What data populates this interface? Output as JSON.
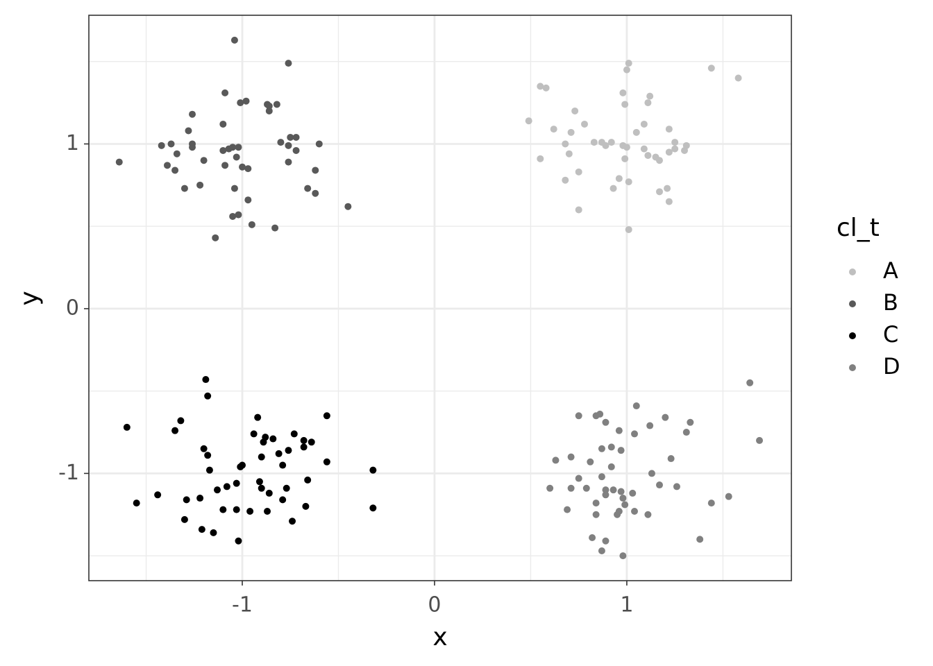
{
  "chart_data": {
    "type": "scatter",
    "x_label": "x",
    "y_label": "y",
    "legend_title": "cl_t",
    "legend_position": "right",
    "xlim": [
      -1.798,
      1.856
    ],
    "ylim": [
      -1.651,
      1.781
    ],
    "xticks": [
      -1,
      0,
      1
    ],
    "yticks": [
      -1,
      0,
      1
    ],
    "x_minor_grid": [
      -1.5,
      -0.5,
      0.5,
      1.5
    ],
    "y_minor_grid": [
      -1.5,
      -0.5,
      0.5,
      1.5
    ],
    "grid": true,
    "series": [
      {
        "name": "A",
        "color": "#bfbfbf",
        "x": [
          0.49,
          0.55,
          0.58,
          0.62,
          0.71,
          0.73,
          0.78,
          0.68,
          0.7,
          0.83,
          0.55,
          0.75,
          0.68,
          0.75,
          0.87,
          0.92,
          0.89,
          0.98,
          1.01,
          1.0,
          0.99,
          0.98,
          1.0,
          0.99,
          0.96,
          0.93,
          1.01,
          1.01,
          1.05,
          1.09,
          1.11,
          1.12,
          1.09,
          1.11,
          1.15,
          1.17,
          1.17,
          1.21,
          1.22,
          1.22,
          1.22,
          1.25,
          1.25,
          1.3,
          1.31,
          1.44,
          1.58
        ],
        "y": [
          1.14,
          1.35,
          1.34,
          1.09,
          1.07,
          1.2,
          1.12,
          1.0,
          0.94,
          1.01,
          0.91,
          0.83,
          0.78,
          0.6,
          1.01,
          1.01,
          0.99,
          1.31,
          1.49,
          1.45,
          1.24,
          0.99,
          0.98,
          0.91,
          0.79,
          0.73,
          0.77,
          0.48,
          1.07,
          1.12,
          1.25,
          1.29,
          0.97,
          0.93,
          0.92,
          0.9,
          0.71,
          0.73,
          0.65,
          1.09,
          0.95,
          1.01,
          0.97,
          0.96,
          0.99,
          1.46,
          1.4
        ]
      },
      {
        "name": "B",
        "color": "#595959",
        "x": [
          -1.64,
          -1.42,
          -1.37,
          -1.39,
          -1.35,
          -1.34,
          -1.3,
          -1.28,
          -1.26,
          -1.26,
          -1.26,
          -1.22,
          -1.2,
          -1.14,
          -1.09,
          -1.1,
          -1.1,
          -1.07,
          -1.09,
          -1.05,
          -1.04,
          -1.04,
          -1.03,
          -1.01,
          -0.98,
          -1.02,
          -1.0,
          -0.97,
          -0.97,
          -1.05,
          -1.02,
          -0.95,
          -0.87,
          -0.86,
          -0.86,
          -0.82,
          -0.83,
          -0.8,
          -0.76,
          -0.75,
          -0.76,
          -0.76,
          -0.72,
          -0.72,
          -0.66,
          -0.62,
          -0.62,
          -0.6,
          -0.45
        ],
        "y": [
          0.89,
          0.99,
          1.0,
          0.87,
          0.84,
          0.94,
          0.73,
          1.08,
          1.18,
          1.0,
          0.98,
          0.75,
          0.9,
          0.43,
          1.31,
          1.12,
          0.96,
          0.97,
          0.87,
          0.98,
          1.63,
          0.73,
          0.92,
          1.25,
          1.26,
          0.98,
          0.86,
          0.85,
          0.66,
          0.56,
          0.57,
          0.51,
          1.24,
          1.2,
          1.23,
          1.24,
          0.49,
          1.01,
          1.49,
          1.04,
          0.99,
          0.89,
          1.04,
          0.96,
          0.73,
          0.84,
          0.7,
          1.0,
          0.62
        ]
      },
      {
        "name": "C",
        "color": "#000000",
        "x": [
          -1.6,
          -1.55,
          -1.44,
          -1.35,
          -1.32,
          -1.3,
          -1.29,
          -1.22,
          -1.21,
          -1.2,
          -1.19,
          -1.18,
          -1.18,
          -1.17,
          -1.15,
          -1.13,
          -1.1,
          -1.08,
          -1.03,
          -1.03,
          -1.02,
          -1.01,
          -1.0,
          -0.96,
          -0.94,
          -0.92,
          -0.91,
          -0.9,
          -0.9,
          -0.89,
          -0.88,
          -0.87,
          -0.86,
          -0.84,
          -0.81,
          -0.79,
          -0.79,
          -0.77,
          -0.76,
          -0.74,
          -0.73,
          -0.68,
          -0.68,
          -0.67,
          -0.66,
          -0.64,
          -0.56,
          -0.56,
          -0.32,
          -0.32
        ],
        "y": [
          -0.72,
          -1.18,
          -1.13,
          -0.74,
          -0.68,
          -1.28,
          -1.16,
          -1.15,
          -1.34,
          -0.85,
          -0.43,
          -0.53,
          -0.89,
          -0.98,
          -1.36,
          -1.1,
          -1.22,
          -1.08,
          -1.22,
          -1.06,
          -1.41,
          -0.96,
          -0.95,
          -1.23,
          -0.76,
          -0.66,
          -1.05,
          -0.9,
          -1.09,
          -0.81,
          -0.78,
          -1.23,
          -1.12,
          -0.79,
          -0.88,
          -0.95,
          -1.16,
          -1.09,
          -0.86,
          -1.29,
          -0.76,
          -0.8,
          -0.84,
          -1.2,
          -1.04,
          -0.81,
          -0.93,
          -0.65,
          -0.98,
          -1.21
        ]
      },
      {
        "name": "D",
        "color": "#808080",
        "x": [
          0.6,
          0.63,
          0.69,
          0.71,
          0.71,
          0.75,
          0.75,
          0.79,
          0.81,
          0.82,
          0.84,
          0.84,
          0.84,
          0.86,
          0.87,
          0.87,
          0.87,
          0.89,
          0.89,
          0.89,
          0.89,
          0.92,
          0.92,
          0.93,
          0.95,
          0.96,
          0.96,
          0.97,
          0.97,
          0.98,
          0.98,
          0.99,
          1.03,
          1.04,
          1.04,
          1.05,
          1.11,
          1.12,
          1.13,
          1.17,
          1.2,
          1.23,
          1.26,
          1.31,
          1.33,
          1.38,
          1.44,
          1.53,
          1.64,
          1.69
        ],
        "y": [
          -1.09,
          -0.92,
          -1.22,
          -0.9,
          -1.09,
          -0.65,
          -1.03,
          -1.09,
          -0.93,
          -1.39,
          -1.18,
          -1.25,
          -0.65,
          -0.64,
          -0.85,
          -1.02,
          -1.47,
          -0.69,
          -1.41,
          -1.1,
          -1.13,
          -0.84,
          -0.96,
          -1.1,
          -1.25,
          -1.23,
          -0.74,
          -0.86,
          -1.11,
          -1.15,
          -1.5,
          -1.19,
          -1.12,
          -0.76,
          -1.23,
          -0.59,
          -1.25,
          -0.71,
          -1.0,
          -1.07,
          -0.66,
          -0.91,
          -1.08,
          -0.75,
          -0.69,
          -1.4,
          -1.18,
          -1.14,
          -0.45,
          -0.8
        ]
      }
    ]
  }
}
